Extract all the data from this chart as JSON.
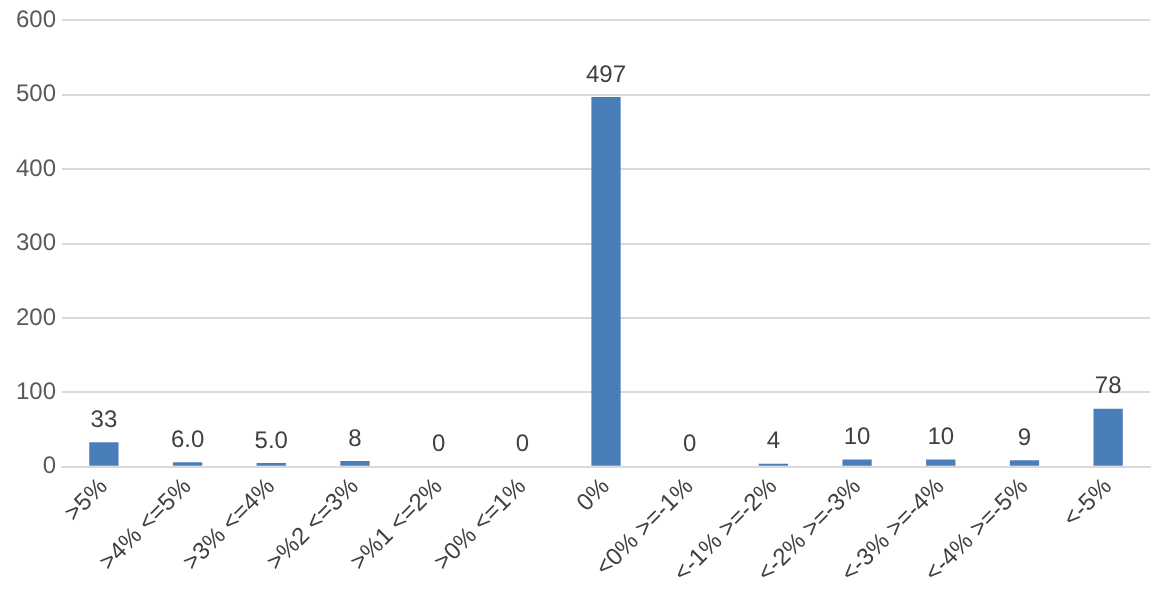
{
  "chart_data": {
    "type": "bar",
    "categories": [
      ">5%",
      ">4% <=5%",
      ">3% <=4%",
      ">%2 <=3%",
      ">%1 <=2%",
      ">0% <=1%",
      "0%",
      "<0% >=-1%",
      "<-1% >=-2%",
      "<-2% >=-3%",
      "<-3% >=-4%",
      "<-4% >=-5%",
      "<-5%"
    ],
    "values": [
      33,
      6,
      5,
      8,
      0,
      0,
      497,
      0,
      4,
      10,
      10,
      9,
      78
    ],
    "value_labels": [
      "33",
      "6.0",
      "5.0",
      "8",
      "0",
      "0",
      "497",
      "0",
      "4",
      "10",
      "10",
      "9",
      "78"
    ],
    "color": "#4a7ebb",
    "ylim": [
      0,
      600
    ],
    "yticks": [
      0,
      100,
      200,
      300,
      400,
      500,
      600
    ],
    "grid": "y"
  }
}
